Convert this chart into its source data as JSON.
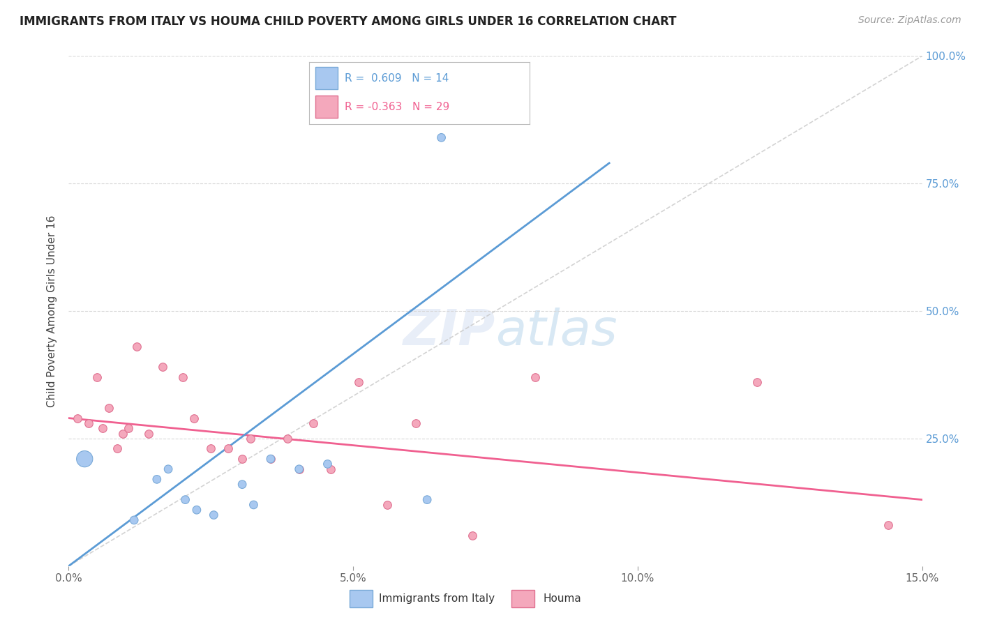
{
  "title": "IMMIGRANTS FROM ITALY VS HOUMA CHILD POVERTY AMONG GIRLS UNDER 16 CORRELATION CHART",
  "source_text": "Source: ZipAtlas.com",
  "ylabel": "Child Poverty Among Girls Under 16",
  "xlim": [
    0.0,
    15.0
  ],
  "ylim": [
    0.0,
    100.0
  ],
  "xtick_labels": [
    "0.0%",
    "",
    "",
    "5.0%",
    "",
    "",
    "10.0%",
    "",
    "",
    "15.0%"
  ],
  "xtick_vals": [
    0.0,
    1.5,
    3.0,
    5.0,
    6.5,
    8.0,
    10.0,
    11.5,
    13.0,
    15.0
  ],
  "xtick_labels_main": [
    "0.0%",
    "5.0%",
    "10.0%",
    "15.0%"
  ],
  "xtick_vals_main": [
    0.0,
    5.0,
    10.0,
    15.0
  ],
  "ytick_labels": [
    "25.0%",
    "50.0%",
    "75.0%",
    "100.0%"
  ],
  "ytick_vals": [
    25.0,
    50.0,
    75.0,
    100.0
  ],
  "legend_r1": "R =  0.609",
  "legend_n1": "N = 14",
  "legend_r2": "R = -0.363",
  "legend_n2": "N = 29",
  "color_blue": "#a8c8f0",
  "color_blue_line": "#5b9bd5",
  "color_blue_edge": "#7aaad8",
  "color_pink": "#f4a8bc",
  "color_pink_line": "#f06090",
  "color_pink_edge": "#e07090",
  "color_ref_line": "#c8c8c8",
  "watermark_color": "#e8eef8",
  "blue_dots_x": [
    0.28,
    1.15,
    1.55,
    1.75,
    2.05,
    2.25,
    2.55,
    3.05,
    3.25,
    3.55,
    4.05,
    4.55,
    6.3,
    6.55
  ],
  "blue_dots_y": [
    21.0,
    9.0,
    17.0,
    19.0,
    13.0,
    11.0,
    10.0,
    16.0,
    12.0,
    21.0,
    19.0,
    20.0,
    13.0,
    84.0
  ],
  "blue_dot_sizes": [
    280,
    70,
    70,
    70,
    70,
    70,
    70,
    70,
    70,
    70,
    70,
    70,
    70,
    70
  ],
  "pink_dots_x": [
    0.15,
    0.35,
    0.5,
    0.6,
    0.7,
    0.85,
    0.95,
    1.05,
    1.2,
    1.4,
    1.65,
    2.0,
    2.2,
    2.5,
    2.8,
    3.05,
    3.2,
    3.55,
    3.85,
    4.05,
    4.3,
    4.6,
    5.1,
    5.6,
    6.1,
    7.1,
    8.2,
    12.1,
    14.4
  ],
  "pink_dots_y": [
    29.0,
    28.0,
    37.0,
    27.0,
    31.0,
    23.0,
    26.0,
    27.0,
    43.0,
    26.0,
    39.0,
    37.0,
    29.0,
    23.0,
    23.0,
    21.0,
    25.0,
    21.0,
    25.0,
    19.0,
    28.0,
    19.0,
    36.0,
    12.0,
    28.0,
    6.0,
    37.0,
    36.0,
    8.0
  ],
  "blue_line_x": [
    0.0,
    9.5
  ],
  "blue_line_y": [
    0.0,
    79.0
  ],
  "pink_line_x": [
    0.0,
    15.0
  ],
  "pink_line_y": [
    29.0,
    13.0
  ],
  "ref_line_x": [
    0.0,
    15.0
  ],
  "ref_line_y": [
    0.0,
    100.0
  ]
}
